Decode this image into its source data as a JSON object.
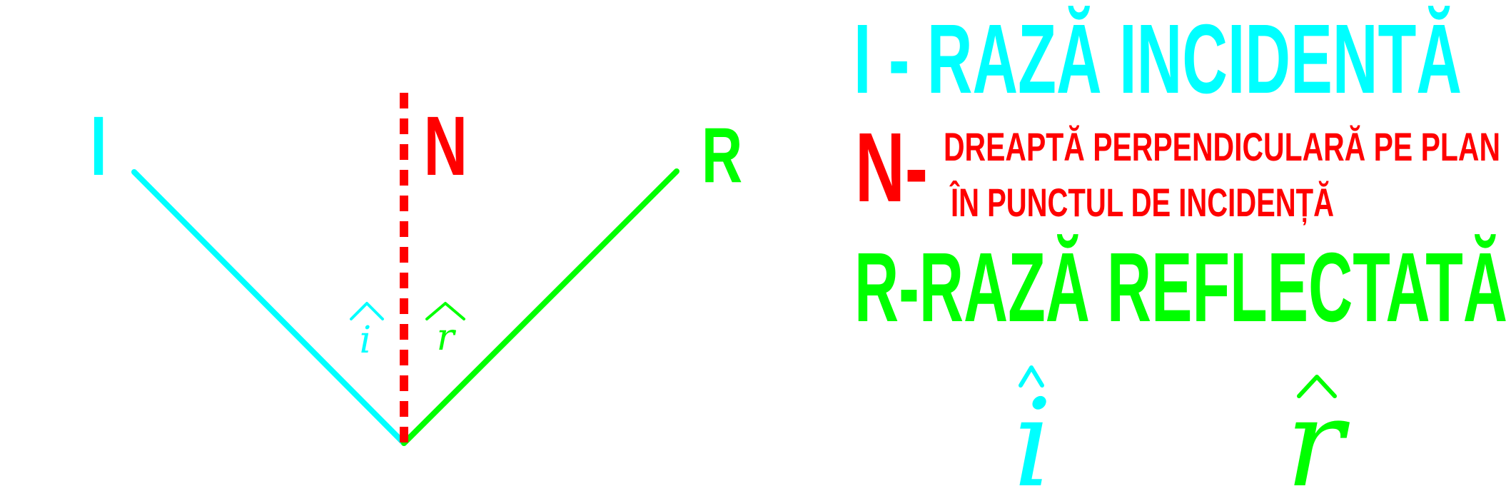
{
  "colors": {
    "incident": "#00ffff",
    "normal": "#ff0000",
    "reflected": "#00ff00"
  },
  "diagram": {
    "incident_label": "I",
    "normal_label": "N",
    "reflected_label": "R",
    "angle_i_symbol": "i",
    "angle_r_symbol": "r"
  },
  "legend": {
    "incident_text": "I - RAZĂ INCIDENTĂ",
    "normal_prefix": "N-",
    "normal_line1": "DREAPTĂ PERPENDICULARĂ PE PLAN",
    "normal_line2": "ÎN PUNCTUL DE INCIDENȚĂ",
    "reflected_text": "R-RAZĂ REFLECTATĂ",
    "angle_i_symbol": "i",
    "angle_r_symbol": "r"
  }
}
